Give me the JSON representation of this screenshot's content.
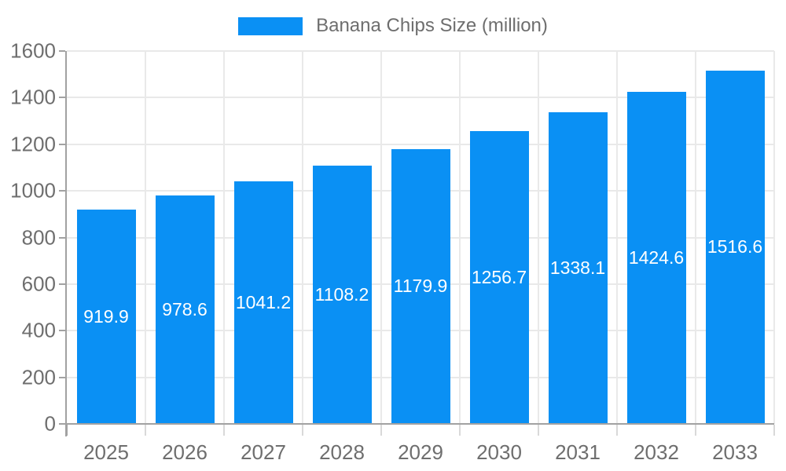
{
  "legend": {
    "label": "Banana Chips Size (million)"
  },
  "colors": {
    "accent": "#0a90f4",
    "grid": "#e9e9e9",
    "axis": "#a2a2a2",
    "x_tick": "#d9d9d9",
    "text": "#6e6e6e",
    "bar_label": "#ffffff",
    "background": "#ffffff"
  },
  "chart_data": {
    "type": "bar",
    "title": "Banana Chips Size (million)",
    "categories": [
      "2025",
      "2026",
      "2027",
      "2028",
      "2029",
      "2030",
      "2031",
      "2032",
      "2033"
    ],
    "series": [
      {
        "name": "Banana Chips Size (million)",
        "color": "#0a90f4",
        "values": [
          919.9,
          978.6,
          1041.2,
          1108.2,
          1179.9,
          1256.7,
          1338.1,
          1424.6,
          1516.6
        ],
        "data_labels": [
          "919.9",
          "978.6",
          "1041.2",
          "1108.2",
          "1179.9",
          "1256.7",
          "1338.1",
          "1424.6",
          "1516.6"
        ]
      }
    ],
    "xlabel": "",
    "ylabel": "",
    "ylim": [
      0,
      1600
    ],
    "yticks": [
      0,
      200,
      400,
      600,
      800,
      1000,
      1200,
      1400,
      1600
    ],
    "grid": true,
    "legend_position": "top",
    "bar_labels_inside": true
  }
}
